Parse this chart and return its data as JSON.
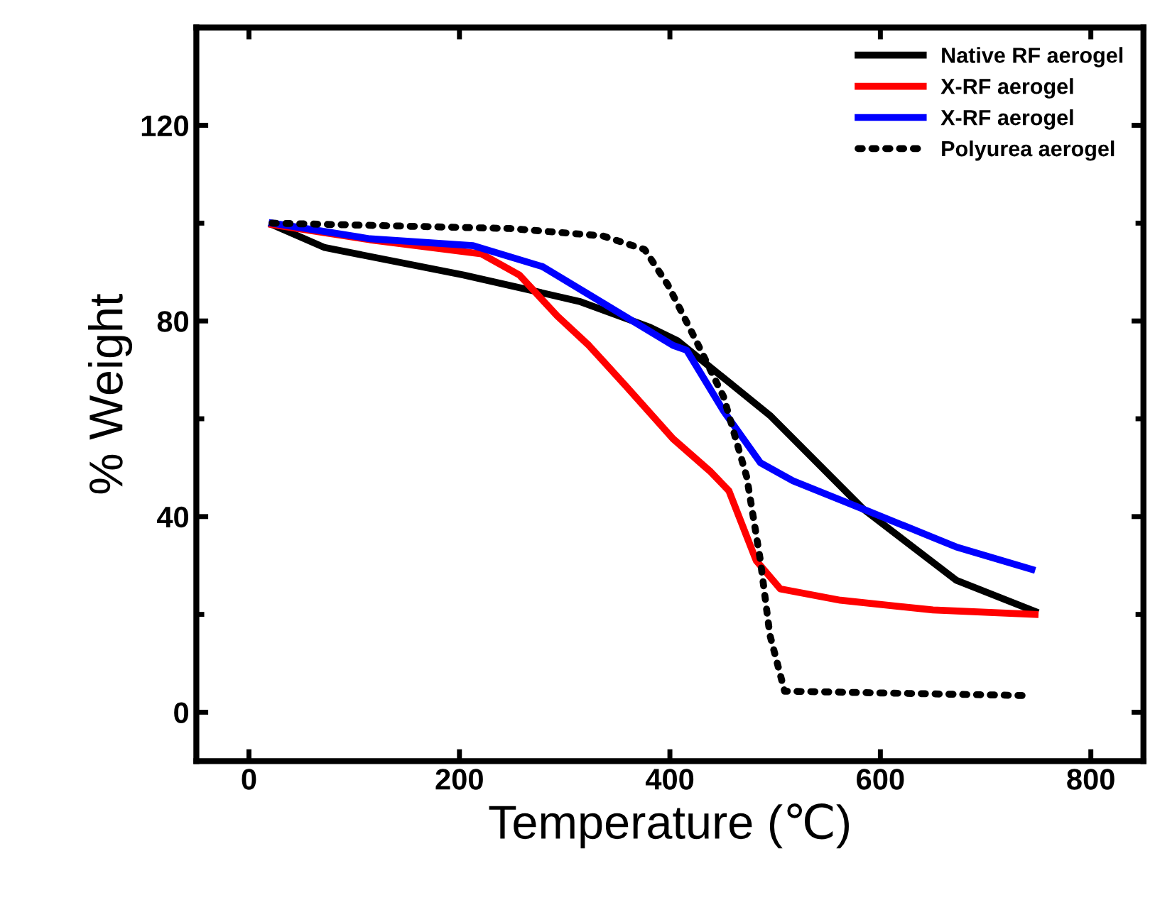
{
  "chart_data": {
    "type": "line",
    "xlabel": "Temperature (℃)",
    "ylabel": "% Weight",
    "xlim": [
      -50,
      850
    ],
    "ylim": [
      -10,
      140
    ],
    "xticks": [
      0,
      200,
      400,
      600,
      800
    ],
    "yticks": [
      0,
      40,
      80,
      120
    ],
    "grid": false,
    "legend": "top right",
    "marker": "none",
    "series": [
      {
        "name": "Native RF aerogel",
        "color": "#000000",
        "line_style": "solid",
        "x": [
          22,
          72,
          204,
          314,
          380,
          407,
          495,
          584,
          672,
          747
        ],
        "values": [
          99.7,
          95,
          89.4,
          84,
          78.8,
          76,
          60.7,
          41.5,
          27,
          20.6
        ]
      },
      {
        "name": "X-RF aerogel",
        "color": "#ff0000",
        "line_style": "solid",
        "x": [
          22,
          115,
          221,
          257,
          293,
          323,
          359,
          403,
          438,
          456,
          482,
          505,
          562,
          650,
          747
        ],
        "values": [
          99.7,
          96.6,
          93.7,
          89.4,
          81,
          75,
          66.5,
          55.9,
          49.3,
          45.3,
          31,
          25.2,
          22.9,
          20.9,
          20
        ]
      },
      {
        "name": "X-RF aerogel",
        "color": "#0000ff",
        "line_style": "solid",
        "x": [
          22,
          115,
          213,
          279,
          323,
          403,
          416,
          451,
          486,
          517,
          584,
          672,
          744
        ],
        "values": [
          100,
          96.8,
          95.4,
          91.1,
          85.4,
          75,
          74,
          61.6,
          51,
          47.3,
          41.5,
          33.8,
          29.2
        ]
      },
      {
        "name": "Polyurea aerogel",
        "color": "#000000",
        "line_style": "dotted",
        "x": [
          22,
          248,
          336,
          376,
          398,
          425,
          451,
          473,
          486,
          495,
          509,
          738
        ],
        "values": [
          100,
          98.9,
          97.4,
          94.6,
          87.4,
          75.9,
          64.5,
          48.1,
          31,
          15.8,
          4.3,
          3.4
        ]
      }
    ]
  }
}
